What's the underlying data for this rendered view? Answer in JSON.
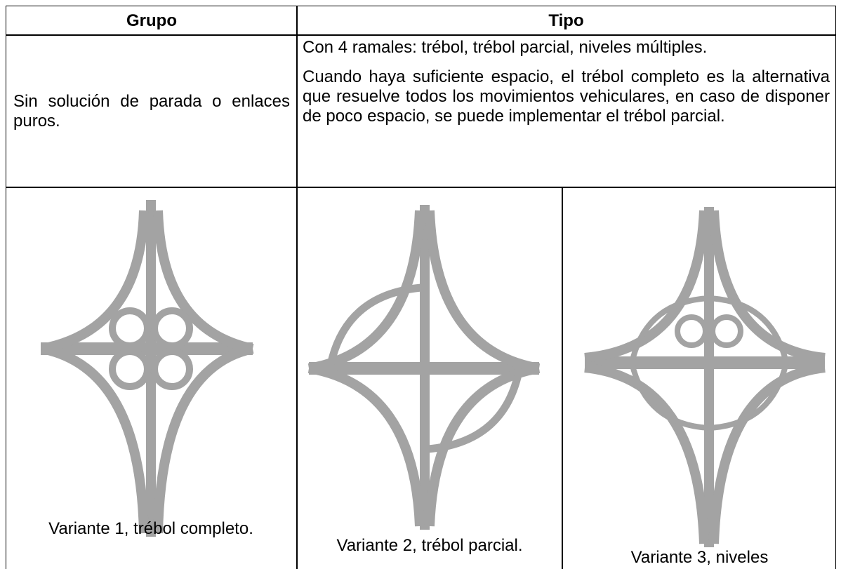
{
  "header": {
    "group": "Grupo",
    "type": "Tipo"
  },
  "row": {
    "group": "Sin solución de parada o enlaces puros.",
    "types": [
      "Con 4 ramales: trébol, trébol parcial, niveles múltiples.",
      "Cuando haya suficiente espacio, el trébol completo es la alternativa que resuelve todos los movimientos vehiculares, en caso de disponer de poco espacio, se puede implementar el trébol parcial."
    ]
  },
  "variants": [
    "Variante 1, trébol completo.",
    "Variante 2, trébol parcial.",
    "Variante 3, niveles"
  ]
}
